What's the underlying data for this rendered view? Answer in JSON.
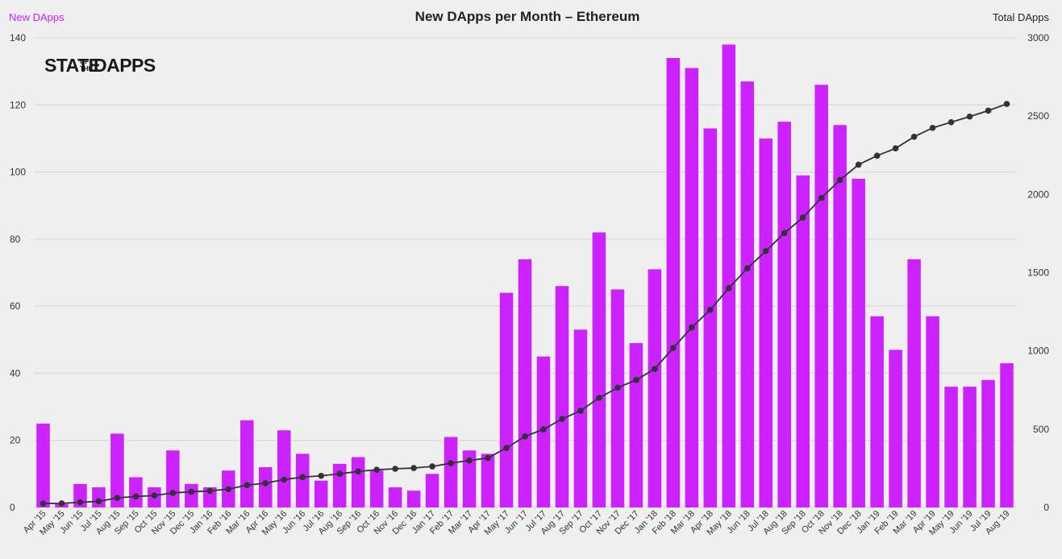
{
  "colors": {
    "bar": "#cc22ff",
    "line": "#333333",
    "grid": "#d6d6d6",
    "background": "#efefef",
    "left_label": "#cc22ff"
  },
  "logo": {
    "main_left": "STATE",
    "small_top": "OF",
    "small_bottom": "THE",
    "main_right": "DAPPS"
  },
  "chart_data": {
    "type": "bar",
    "title": "New DApps per Month – Ethereum",
    "legend_left": "New DApps",
    "legend_right": "Total DApps",
    "grid": true,
    "categories": [
      "Apr '15",
      "May '15",
      "Jun '15",
      "Jul '15",
      "Aug '15",
      "Sep '15",
      "Oct '15",
      "Nov '15",
      "Dec '15",
      "Jan '16",
      "Feb '16",
      "Mar '16",
      "Apr '16",
      "May '16",
      "Jun '16",
      "Jul '16",
      "Aug '16",
      "Sep '16",
      "Oct '16",
      "Nov '16",
      "Dec '16",
      "Jan '17",
      "Feb '17",
      "Mar '17",
      "Apr '17",
      "May '17",
      "Jun '17",
      "Jul '17",
      "Aug '17",
      "Sep '17",
      "Oct '17",
      "Nov '17",
      "Dec '17",
      "Jan '18",
      "Feb '18",
      "Mar '18",
      "Apr '18",
      "May '18",
      "Jun '18",
      "Jul '18",
      "Aug '18",
      "Sep '18",
      "Oct '18",
      "Nov '18",
      "Dec '18",
      "Jan '19",
      "Feb '19",
      "Mar '19",
      "Apr '19",
      "May '19",
      "Jun '19",
      "Jul '19",
      "Aug '19"
    ],
    "ylim_left": [
      0,
      140
    ],
    "yticks_left": [
      0,
      20,
      40,
      60,
      80,
      100,
      120,
      140
    ],
    "ylim_right": [
      0,
      3000
    ],
    "yticks_right": [
      0,
      500,
      1000,
      1500,
      2000,
      2500,
      3000
    ],
    "series": [
      {
        "name": "New DApps",
        "type": "bar",
        "axis": "left",
        "values": [
          25,
          1,
          7,
          6,
          22,
          9,
          6,
          17,
          7,
          6,
          11,
          26,
          12,
          23,
          16,
          8,
          13,
          15,
          11,
          6,
          5,
          10,
          21,
          17,
          16,
          64,
          74,
          45,
          66,
          53,
          82,
          65,
          49,
          71,
          134,
          131,
          113,
          138,
          127,
          110,
          115,
          99,
          126,
          114,
          98,
          57,
          47,
          74,
          57,
          36,
          36,
          38,
          43
        ]
      },
      {
        "name": "Total DApps",
        "type": "line",
        "axis": "right",
        "values": [
          25,
          26,
          33,
          39,
          61,
          70,
          76,
          93,
          100,
          106,
          117,
          143,
          155,
          178,
          194,
          202,
          215,
          230,
          241,
          247,
          252,
          262,
          283,
          300,
          316,
          380,
          454,
          499,
          565,
          618,
          700,
          765,
          814,
          885,
          1019,
          1150,
          1263,
          1401,
          1528,
          1638,
          1753,
          1852,
          1978,
          2092,
          2190,
          2247,
          2294,
          2368,
          2425,
          2461,
          2497,
          2535,
          2578
        ]
      }
    ]
  }
}
